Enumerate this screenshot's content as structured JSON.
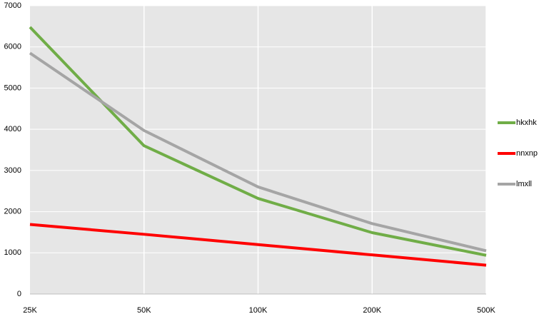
{
  "chart_data": {
    "type": "line",
    "categories": [
      "25K",
      "50K",
      "100K",
      "200K",
      "500K"
    ],
    "series": [
      {
        "name": "hkxhk",
        "color": "#70ad47",
        "values": [
          6480,
          3600,
          2320,
          1490,
          940
        ]
      },
      {
        "name": "nnxnp",
        "color": "#ff0000",
        "values": [
          1690,
          1450,
          1200,
          950,
          700
        ]
      },
      {
        "name": "lmxll",
        "color": "#a5a5a5",
        "values": [
          5850,
          3970,
          2600,
          1710,
          1050
        ]
      }
    ],
    "ylim": [
      0,
      7000
    ],
    "yticks": [
      0,
      1000,
      2000,
      3000,
      4000,
      5000,
      6000,
      7000
    ],
    "grid": true,
    "legend": "right"
  }
}
